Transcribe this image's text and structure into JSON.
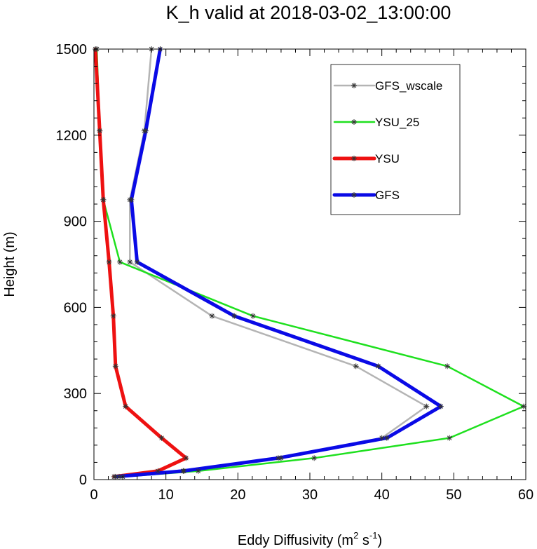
{
  "chart_data": {
    "type": "line",
    "title": "K_h valid at 2018-03-02_13:00:00",
    "xlabel": "Eddy Diffusivity (m",
    "xlabel_sup1": "2",
    "xlabel_mid": " s",
    "xlabel_sup2": "-1",
    "xlabel_end": ")",
    "ylabel": "Height (m)",
    "xlim": [
      0,
      60
    ],
    "ylim": [
      0,
      1500
    ],
    "xticks": [
      0,
      10,
      20,
      30,
      40,
      50,
      60
    ],
    "yticks": [
      0,
      300,
      600,
      900,
      1200,
      1500
    ],
    "legend_position": "top-right",
    "series": [
      {
        "name": "GFS_wscale",
        "color": "#b4b4b4",
        "width": 2.5,
        "points": [
          [
            3.5,
            10
          ],
          [
            12.5,
            30
          ],
          [
            26,
            75
          ],
          [
            40,
            145
          ],
          [
            46.2,
            255
          ],
          [
            36.4,
            395
          ],
          [
            16.4,
            570
          ],
          [
            5,
            758
          ],
          [
            5,
            975
          ],
          [
            7,
            1215
          ],
          [
            8,
            1500
          ]
        ]
      },
      {
        "name": "YSU_25",
        "color": "#1ee01e",
        "width": 2.5,
        "points": [
          [
            4,
            10
          ],
          [
            14.5,
            30
          ],
          [
            30.6,
            75
          ],
          [
            49.4,
            145
          ],
          [
            59.7,
            255
          ],
          [
            49.1,
            395
          ],
          [
            22.1,
            570
          ],
          [
            3.6,
            758
          ],
          [
            1.3,
            975
          ],
          [
            0.8,
            1215
          ],
          [
            0.4,
            1500
          ]
        ]
      },
      {
        "name": "YSU",
        "color": "#ee1111",
        "width": 5,
        "points": [
          [
            2.8,
            10
          ],
          [
            8.9,
            30
          ],
          [
            12.8,
            75
          ],
          [
            9.4,
            145
          ],
          [
            4.4,
            255
          ],
          [
            3,
            395
          ],
          [
            2.7,
            570
          ],
          [
            2.1,
            758
          ],
          [
            1.3,
            975
          ],
          [
            0.8,
            1215
          ],
          [
            0.2,
            1500
          ]
        ]
      },
      {
        "name": "GFS",
        "color": "#0a0ae6",
        "width": 5,
        "points": [
          [
            3,
            10
          ],
          [
            12.4,
            30
          ],
          [
            25.6,
            75
          ],
          [
            40.7,
            145
          ],
          [
            48.2,
            255
          ],
          [
            39.5,
            395
          ],
          [
            19.5,
            570
          ],
          [
            6,
            758
          ],
          [
            5.2,
            975
          ],
          [
            7.2,
            1215
          ],
          [
            9.2,
            1500
          ]
        ]
      }
    ]
  }
}
